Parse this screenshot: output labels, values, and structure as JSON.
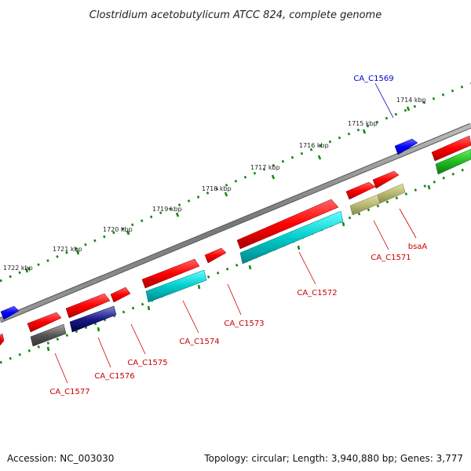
{
  "title": "Clostridium acetobutylicum ATCC 824, complete genome",
  "scale_labels": [
    "1714 kbp",
    "1715 kbp",
    "1716 kbp",
    "1717 kbp",
    "1718 kbp",
    "1719 kbp",
    "1720 kbp",
    "1721 kbp",
    "1722 kbp"
  ],
  "genes": [
    {
      "label": "CA_C1569",
      "color": "#0000cc"
    },
    {
      "label": "CA_C1571",
      "color": "#cc0000"
    },
    {
      "label": "bsaA",
      "color": "#cc0000"
    },
    {
      "label": "CA_C1572",
      "color": "#cc0000"
    },
    {
      "label": "CA_C1573",
      "color": "#cc0000"
    },
    {
      "label": "CA_C1574",
      "color": "#cc0000"
    },
    {
      "label": "CA_C1575",
      "color": "#cc0000"
    },
    {
      "label": "CA_C1576",
      "color": "#cc0000"
    },
    {
      "label": "CA_C1577",
      "color": "#cc0000"
    }
  ],
  "colors": {
    "backbone": "#888888",
    "scale_ticks": "#118811",
    "forward_cds": "#ff0000",
    "reverse_cds": "#0000ff",
    "cyan_feature": "#00cccc",
    "olive_feature": "#b8b870",
    "green_feature": "#22bb22",
    "navy_feature": "#1a1a88",
    "grey_feature": "#555555"
  },
  "footer": {
    "accession": "Accession: NC_003030",
    "stats": "Topology: circular; Length: 3,940,880 bp; Genes: 3,777"
  }
}
